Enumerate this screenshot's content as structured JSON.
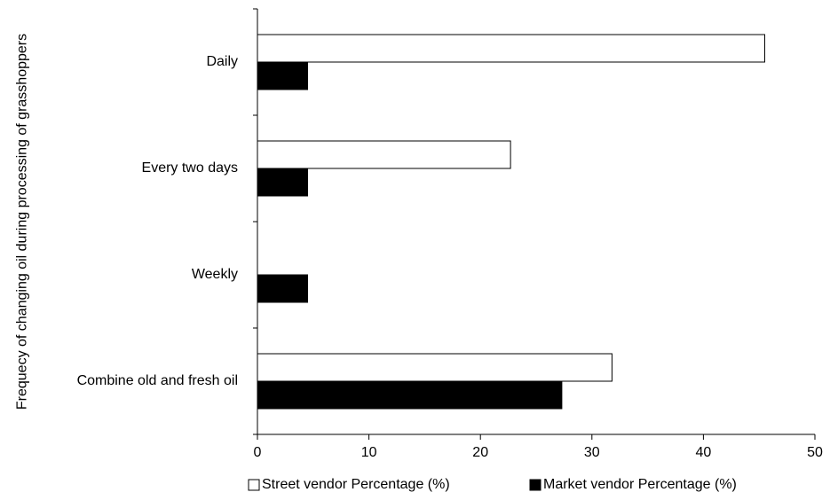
{
  "chart_data": {
    "type": "bar",
    "orientation": "horizontal",
    "y_label": "Frequecy of changing oil during processing of grasshoppers",
    "categories": [
      "Daily",
      "Every two days",
      "Weekly",
      "Combine old and fresh oil"
    ],
    "series": [
      {
        "name": "Street vendor Percentage (%)",
        "color": "#ffffff",
        "values": [
          45.5,
          22.7,
          0,
          31.8
        ]
      },
      {
        "name": "Market vendor Percentage (%)",
        "color": "#000000",
        "values": [
          4.5,
          4.5,
          4.5,
          27.3
        ]
      }
    ],
    "xlim": [
      0,
      50
    ],
    "xticks": [
      0,
      10,
      20,
      30,
      40,
      50
    ],
    "grid": false,
    "legend": "bottom"
  }
}
